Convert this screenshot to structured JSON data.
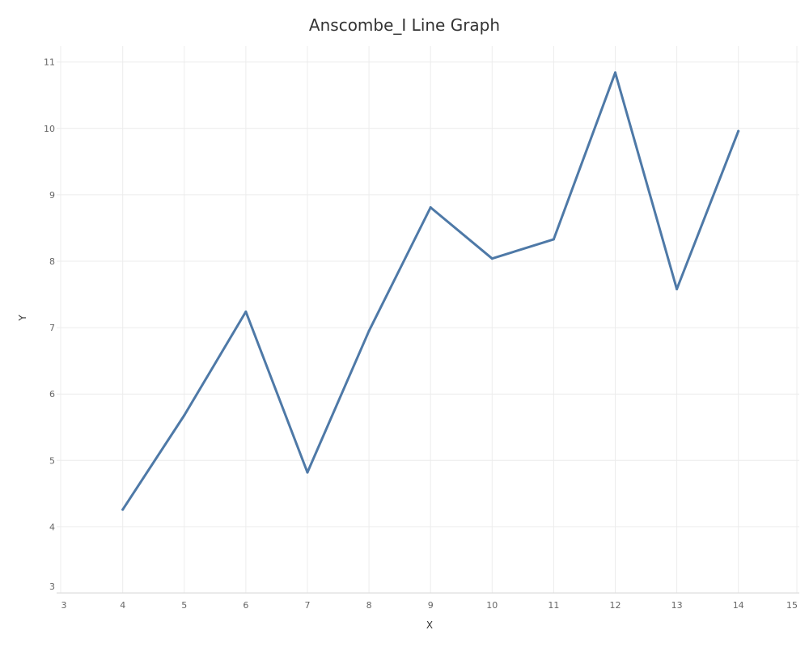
{
  "chart_data": {
    "type": "line",
    "title": "Anscombe_I Line Graph",
    "xlabel": "X",
    "ylabel": "Y",
    "xlim": [
      3,
      15
    ],
    "ylim": [
      3,
      11
    ],
    "x_ticks": [
      3,
      4,
      5,
      6,
      7,
      8,
      9,
      10,
      11,
      12,
      13,
      14,
      15
    ],
    "y_ticks": [
      3,
      4,
      5,
      6,
      7,
      8,
      9,
      10,
      11
    ],
    "grid": true,
    "series": [
      {
        "color": "#4e79a7",
        "points": [
          {
            "x": 4,
            "y": 4.26
          },
          {
            "x": 5,
            "y": 5.68
          },
          {
            "x": 6,
            "y": 7.24
          },
          {
            "x": 7,
            "y": 4.82
          },
          {
            "x": 8,
            "y": 6.95
          },
          {
            "x": 9,
            "y": 8.81
          },
          {
            "x": 10,
            "y": 8.04
          },
          {
            "x": 11,
            "y": 8.33
          },
          {
            "x": 12,
            "y": 10.84
          },
          {
            "x": 13,
            "y": 7.58
          },
          {
            "x": 14,
            "y": 9.96
          }
        ]
      }
    ]
  }
}
